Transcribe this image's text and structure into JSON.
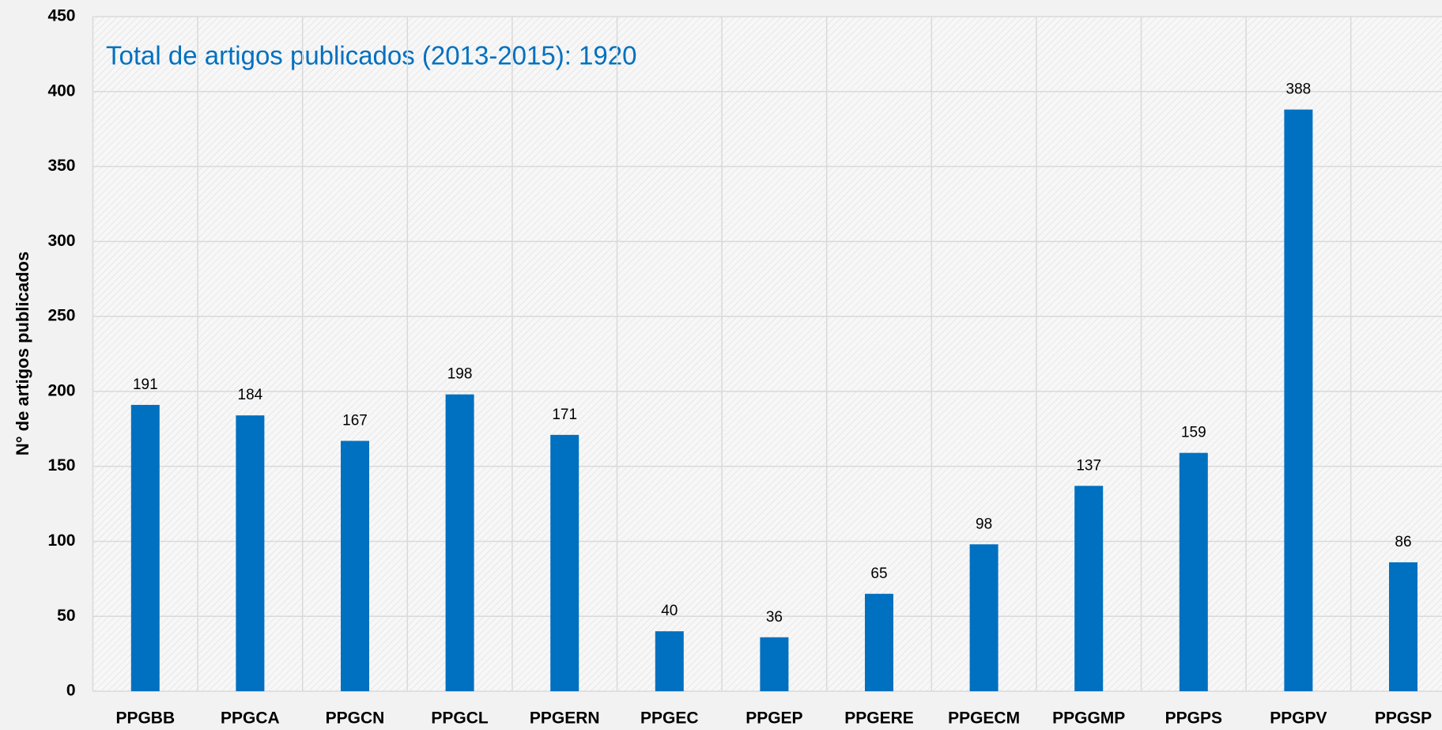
{
  "chart_data": {
    "type": "bar",
    "title": "Total de artigos publicados (2013-2015): 1920",
    "y_label": "N° de  artigos publicados",
    "categories": [
      "PPGBB",
      "PPGCA",
      "PPGCN",
      "PPGCL",
      "PPGERN",
      "PPGEC",
      "PPGEP",
      "PPGERE",
      "PPGECM",
      "PPGGMP",
      "PPGPS",
      "PPGPV",
      "PPGSP"
    ],
    "values": [
      191,
      184,
      167,
      198,
      171,
      40,
      36,
      65,
      98,
      137,
      159,
      388,
      86
    ],
    "color": "#0070c0",
    "ylim": [
      0,
      450
    ],
    "yticks": [
      0,
      50,
      100,
      150,
      200,
      250,
      300,
      350,
      400,
      450
    ],
    "grid": true,
    "data_labels": true
  }
}
